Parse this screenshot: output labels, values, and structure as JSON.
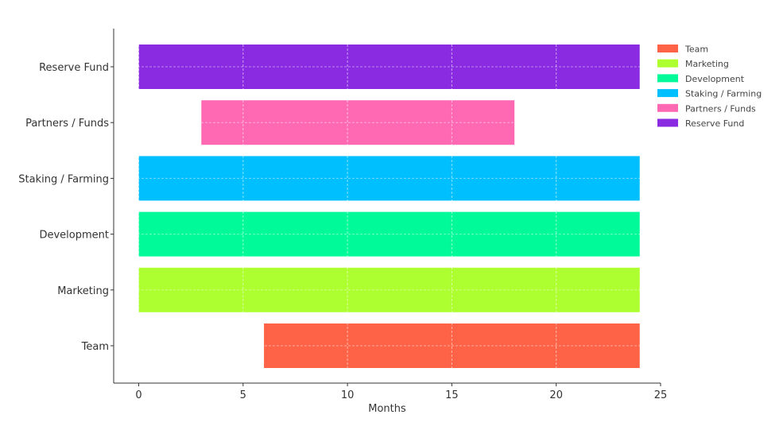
{
  "chart_data": {
    "type": "bar",
    "orientation": "horizontal",
    "title": "",
    "xlabel": "Months",
    "ylabel": "",
    "xlim": [
      -1.2,
      25
    ],
    "xticks": [
      0,
      5,
      10,
      15,
      20,
      25
    ],
    "grid": true,
    "legend": "top-right",
    "series": [
      {
        "name": "Team",
        "start": 6,
        "end": 24,
        "color": "#FF6347"
      },
      {
        "name": "Marketing",
        "start": 0,
        "end": 24,
        "color": "#ADFF2F"
      },
      {
        "name": "Development",
        "start": 0,
        "end": 24,
        "color": "#00FA9A"
      },
      {
        "name": "Staking / Farming",
        "start": 0,
        "end": 24,
        "color": "#00BFFF"
      },
      {
        "name": "Partners / Funds",
        "start": 3,
        "end": 18,
        "color": "#FF69B4"
      },
      {
        "name": "Reserve Fund",
        "start": 0,
        "end": 24,
        "color": "#8A2BE2"
      }
    ]
  }
}
